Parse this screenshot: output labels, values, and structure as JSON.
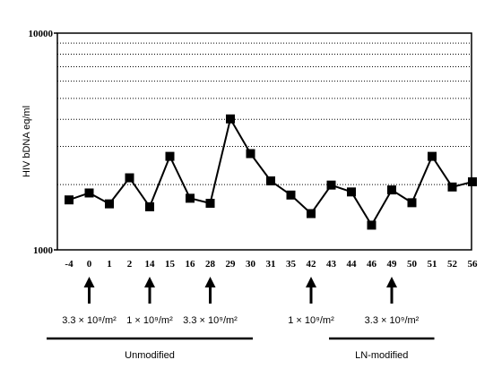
{
  "chart_data": {
    "type": "line",
    "title": "",
    "ylabel": "HIV bDNA eq/ml",
    "xlabel": "",
    "yscale": "log",
    "ylim": [
      1000,
      10000
    ],
    "yticks": [
      "1000",
      "10000"
    ],
    "grid": "dotted horizontal at log minor ticks",
    "categories": [
      "-4",
      "0",
      "1",
      "2",
      "14",
      "15",
      "16",
      "28",
      "29",
      "30",
      "31",
      "35",
      "42",
      "43",
      "44",
      "46",
      "49",
      "50",
      "51",
      "52",
      "56"
    ],
    "series": [
      {
        "marker": "square",
        "color": "#000000",
        "values": [
          1700,
          1830,
          1630,
          2150,
          1580,
          2700,
          1730,
          1640,
          4020,
          2780,
          2080,
          1790,
          1470,
          1990,
          1850,
          1300,
          1890,
          1650,
          2700,
          1950,
          2060
        ]
      }
    ],
    "arrows_at": [
      "0",
      "14",
      "28",
      "42",
      "49"
    ],
    "dose_labels": [
      {
        "text": "3.3 × 10⁸/m²",
        "at": "0"
      },
      {
        "text": "1 × 10⁹/m²",
        "at": "14"
      },
      {
        "text": "3.3 × 10⁹/m²",
        "at": "28"
      },
      {
        "text": "1 × 10⁹/m²",
        "at": "42"
      },
      {
        "text": "3.3 × 10⁹/m²",
        "at": "49"
      }
    ],
    "groups": [
      {
        "label": "Unmodified",
        "from": "-4",
        "to": "29"
      },
      {
        "label": "LN-modified",
        "from": "44",
        "to": "50"
      }
    ]
  }
}
